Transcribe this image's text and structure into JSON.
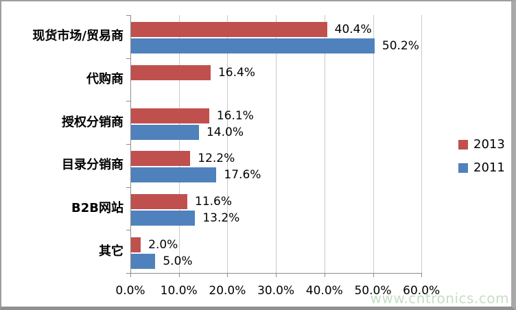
{
  "chart_data": {
    "type": "bar",
    "orientation": "horizontal",
    "title": "",
    "categories": [
      "现货市场/贸易商",
      "代购商",
      "授权分销商",
      "目录分销商",
      "B2B网站",
      "其它"
    ],
    "series": [
      {
        "name": "2013",
        "color": "#c0504d",
        "values": [
          40.4,
          16.4,
          16.1,
          12.2,
          11.6,
          2.0
        ]
      },
      {
        "name": "2011",
        "color": "#4f81bd",
        "values": [
          50.2,
          null,
          14.0,
          17.6,
          13.2,
          5.0
        ]
      }
    ],
    "value_labels": [
      [
        "40.4%",
        "16.4%",
        "16.1%",
        "12.2%",
        "11.6%",
        "2.0%"
      ],
      [
        "50.2%",
        null,
        "14.0%",
        "17.6%",
        "13.2%",
        "5.0%"
      ]
    ],
    "x_ticks": [
      "0.0%",
      "10.0%",
      "20.0%",
      "30.0%",
      "40.0%",
      "50.0%",
      "60.0%"
    ],
    "xlim": [
      0,
      60
    ],
    "grid": true,
    "legend": {
      "position": "right",
      "entries": [
        "2013",
        "2011"
      ]
    }
  },
  "watermark": {
    "text": "www.cntronics.com",
    "color": "#c6dfc3"
  },
  "colors": {
    "grid": "#c9c9c9",
    "axis": "#8c8c8c",
    "background": "#ffffff",
    "text": "#000000"
  }
}
